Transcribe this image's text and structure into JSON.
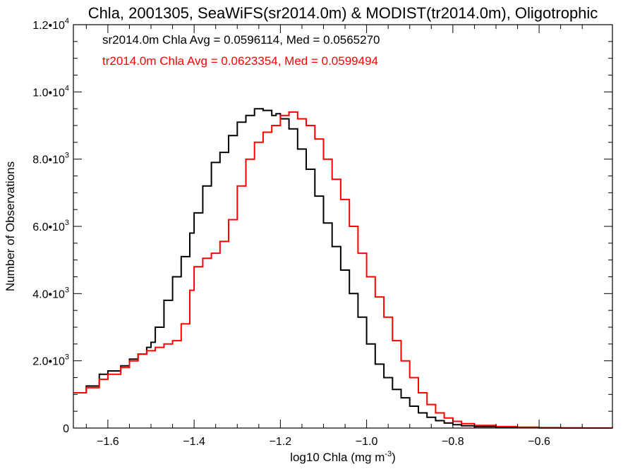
{
  "chart_data": {
    "type": "line",
    "title": "Chla, 2001305, SeaWiFS(sr2014.0m) & MODIST(tr2014.0m), Oligotrophic",
    "xlabel": "log10 Chla (mg m",
    "xlabel_exp": "-3",
    "xlabel_close": ")",
    "ylabel": "Number of Observations",
    "xlim": [
      -1.68,
      -0.43
    ],
    "ylim": [
      0,
      12000
    ],
    "x_ticks": [
      {
        "value": -1.6,
        "label": "−1.6"
      },
      {
        "value": -1.4,
        "label": "−1.4"
      },
      {
        "value": -1.2,
        "label": "−1.2"
      },
      {
        "value": -1.0,
        "label": "−1.0"
      },
      {
        "value": -0.8,
        "label": "−0.8"
      },
      {
        "value": -0.6,
        "label": "−0.6"
      }
    ],
    "y_ticks": [
      {
        "value": 0,
        "label": "0",
        "exp": ""
      },
      {
        "value": 2000,
        "label": "2.0•10",
        "exp": "3"
      },
      {
        "value": 4000,
        "label": "4.0•10",
        "exp": "3"
      },
      {
        "value": 6000,
        "label": "6.0•10",
        "exp": "3"
      },
      {
        "value": 8000,
        "label": "8.0•10",
        "exp": "3"
      },
      {
        "value": 10000,
        "label": "1.0•10",
        "exp": "4"
      },
      {
        "value": 12000,
        "label": "1.2•10",
        "exp": "4"
      }
    ],
    "annotations": [
      {
        "text": "sr2014.0m Chla Avg = 0.0596114, Med = 0.0565270",
        "color": "#000000"
      },
      {
        "text": "tr2014.0m Chla Avg = 0.0623354, Med = 0.0599494",
        "color": "#ff0000"
      }
    ],
    "grid": false,
    "series": [
      {
        "color": "#000000",
        "x": [
          -1.68,
          -1.65,
          -1.62,
          -1.6,
          -1.57,
          -1.55,
          -1.53,
          -1.51,
          -1.5,
          -1.49,
          -1.47,
          -1.45,
          -1.43,
          -1.41,
          -1.4,
          -1.38,
          -1.36,
          -1.34,
          -1.32,
          -1.3,
          -1.28,
          -1.26,
          -1.25,
          -1.24,
          -1.22,
          -1.21,
          -1.2,
          -1.18,
          -1.16,
          -1.14,
          -1.12,
          -1.1,
          -1.08,
          -1.06,
          -1.04,
          -1.02,
          -1.0,
          -0.98,
          -0.96,
          -0.94,
          -0.92,
          -0.9,
          -0.88,
          -0.86,
          -0.84,
          -0.82,
          -0.8,
          -0.78,
          -0.75,
          -0.7,
          -0.65,
          -0.6,
          -0.55,
          -0.5,
          -0.43
        ],
        "y": [
          1050,
          1250,
          1600,
          1700,
          1850,
          2050,
          2200,
          2400,
          2550,
          3000,
          3800,
          4500,
          5100,
          5800,
          6400,
          7200,
          7900,
          8200,
          8700,
          9100,
          9300,
          9500,
          9500,
          9450,
          9300,
          9350,
          9200,
          8900,
          8300,
          7700,
          6900,
          6100,
          5400,
          4700,
          4000,
          3300,
          2500,
          1900,
          1500,
          1150,
          900,
          650,
          450,
          320,
          220,
          150,
          100,
          70,
          40,
          20,
          10,
          5,
          3,
          1,
          0
        ]
      },
      {
        "color": "#ff0000",
        "x": [
          -1.68,
          -1.65,
          -1.62,
          -1.6,
          -1.57,
          -1.55,
          -1.53,
          -1.51,
          -1.49,
          -1.47,
          -1.45,
          -1.43,
          -1.41,
          -1.4,
          -1.38,
          -1.36,
          -1.34,
          -1.32,
          -1.3,
          -1.28,
          -1.26,
          -1.24,
          -1.22,
          -1.2,
          -1.18,
          -1.16,
          -1.14,
          -1.12,
          -1.1,
          -1.08,
          -1.06,
          -1.04,
          -1.02,
          -1.0,
          -0.98,
          -0.96,
          -0.94,
          -0.92,
          -0.9,
          -0.88,
          -0.86,
          -0.84,
          -0.82,
          -0.8,
          -0.78,
          -0.75,
          -0.7,
          -0.65,
          -0.6,
          -0.55,
          -0.5,
          -0.43
        ],
        "y": [
          1050,
          1200,
          1450,
          1600,
          1800,
          2000,
          2200,
          2300,
          2400,
          2500,
          2600,
          3100,
          4100,
          4800,
          5050,
          5200,
          5550,
          6200,
          7200,
          8000,
          8500,
          8800,
          9000,
          9300,
          9400,
          9200,
          9000,
          8600,
          8000,
          7400,
          6800,
          6000,
          5200,
          4500,
          3900,
          3300,
          2600,
          2000,
          1500,
          1050,
          700,
          450,
          300,
          200,
          130,
          80,
          45,
          25,
          12,
          6,
          3,
          0
        ]
      }
    ]
  }
}
